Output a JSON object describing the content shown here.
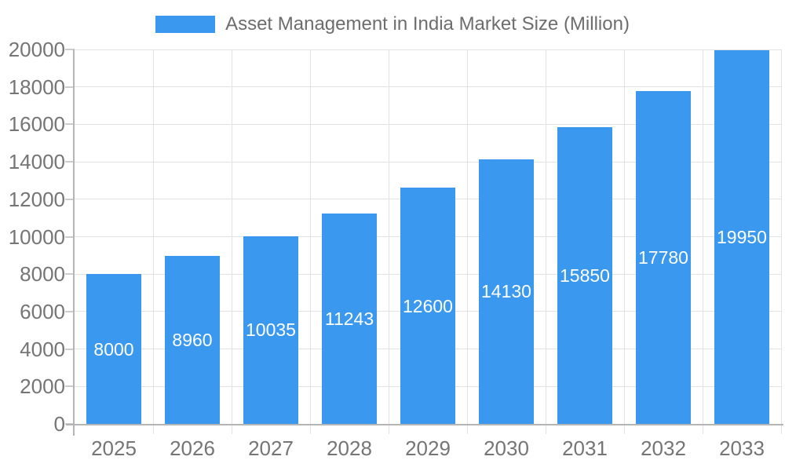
{
  "legend": {
    "label": "Asset Management in India Market Size (Million)"
  },
  "chart_data": {
    "type": "bar",
    "title": "Asset Management in India Market Size (Million)",
    "categories": [
      "2025",
      "2026",
      "2027",
      "2028",
      "2029",
      "2030",
      "2031",
      "2032",
      "2033"
    ],
    "values": [
      8000,
      8960,
      10035,
      11243,
      12600,
      14130,
      15850,
      17780,
      19950
    ],
    "series": [
      {
        "name": "Asset Management in India Market Size (Million)",
        "values": [
          8000,
          8960,
          10035,
          11243,
          12600,
          14130,
          15850,
          17780,
          19950
        ]
      }
    ],
    "xlabel": "",
    "ylabel": "",
    "ylim": [
      0,
      20000
    ],
    "ytick_step": 2000,
    "yticks": [
      0,
      2000,
      4000,
      6000,
      8000,
      10000,
      12000,
      14000,
      16000,
      18000,
      20000
    ],
    "grid": true,
    "legend_position": "top",
    "value_label_position": "inside-center"
  },
  "colors": {
    "bar": "#3a99ee",
    "grid": "#e2e2e2",
    "axis_line": "#b5b5b5",
    "tick": "#cccccc",
    "axis_label_text": "#757575",
    "legend_text": "#6d6d6d",
    "value_label_text": "#ffffff",
    "background": "#ffffff"
  }
}
